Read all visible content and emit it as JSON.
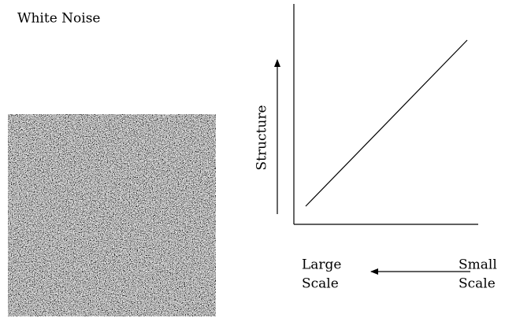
{
  "title": "White Noise",
  "axis_label": "Structure",
  "left_label": [
    "Large",
    "Scale"
  ],
  "right_label": [
    "Small",
    "Scale"
  ]
}
